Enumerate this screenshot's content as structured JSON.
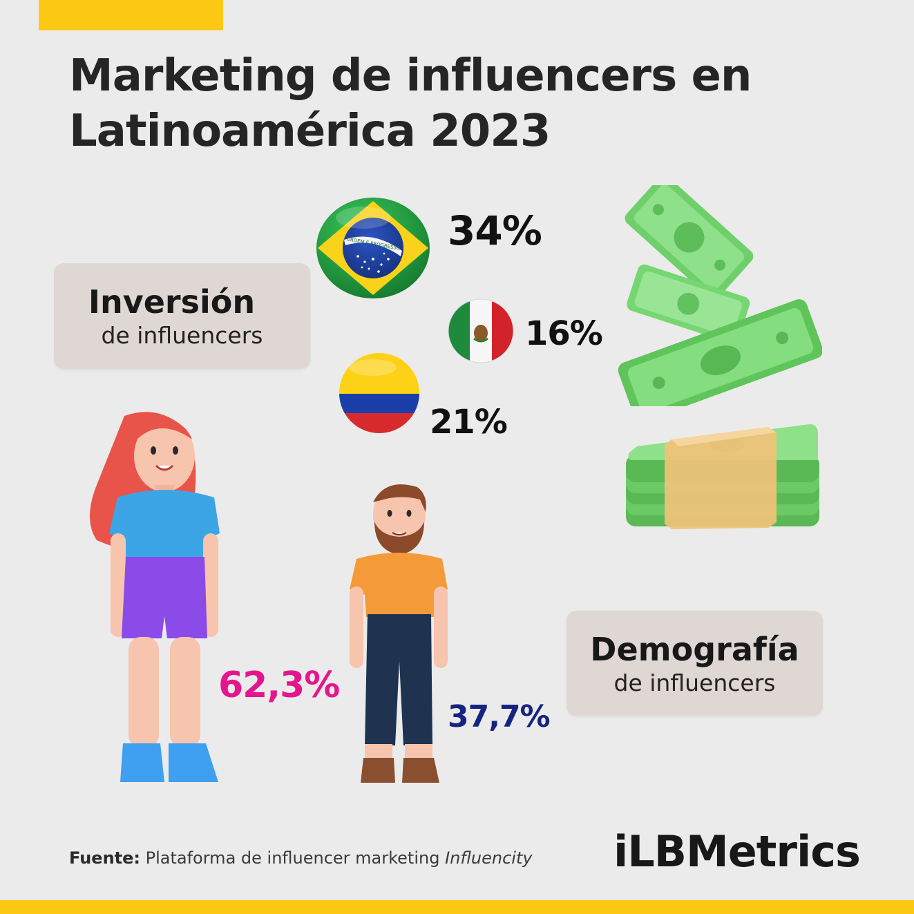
{
  "title": {
    "line1": "Marketing de influencers en",
    "line2": "Latinoamérica 2023"
  },
  "investment": {
    "label_big": "Inversión",
    "label_small": "de influencers",
    "brazil": {
      "value": "34%",
      "banner": "ORDEM E PROGRESSO"
    },
    "mexico": {
      "value": "16%"
    },
    "colombia": {
      "value": "21%"
    }
  },
  "demographics": {
    "label_big": "Demografía",
    "label_small": "de influencers",
    "women": "62,3%",
    "men": "37,7%"
  },
  "source": {
    "label": "Fuente:",
    "text": "Plataforma de influencer marketing",
    "platform": "Influencity"
  },
  "logo": {
    "text": "iLBMetrics"
  },
  "colors": {
    "accent": "#fec914",
    "women": "#e5168d",
    "men": "#16237f",
    "label_bg": "#dfd7d3"
  },
  "icons": [
    "brazil-flag-icon",
    "mexico-flag-icon",
    "colombia-flag-icon",
    "flying-money-icon",
    "money-stack-icon",
    "woman-figure",
    "man-figure"
  ]
}
